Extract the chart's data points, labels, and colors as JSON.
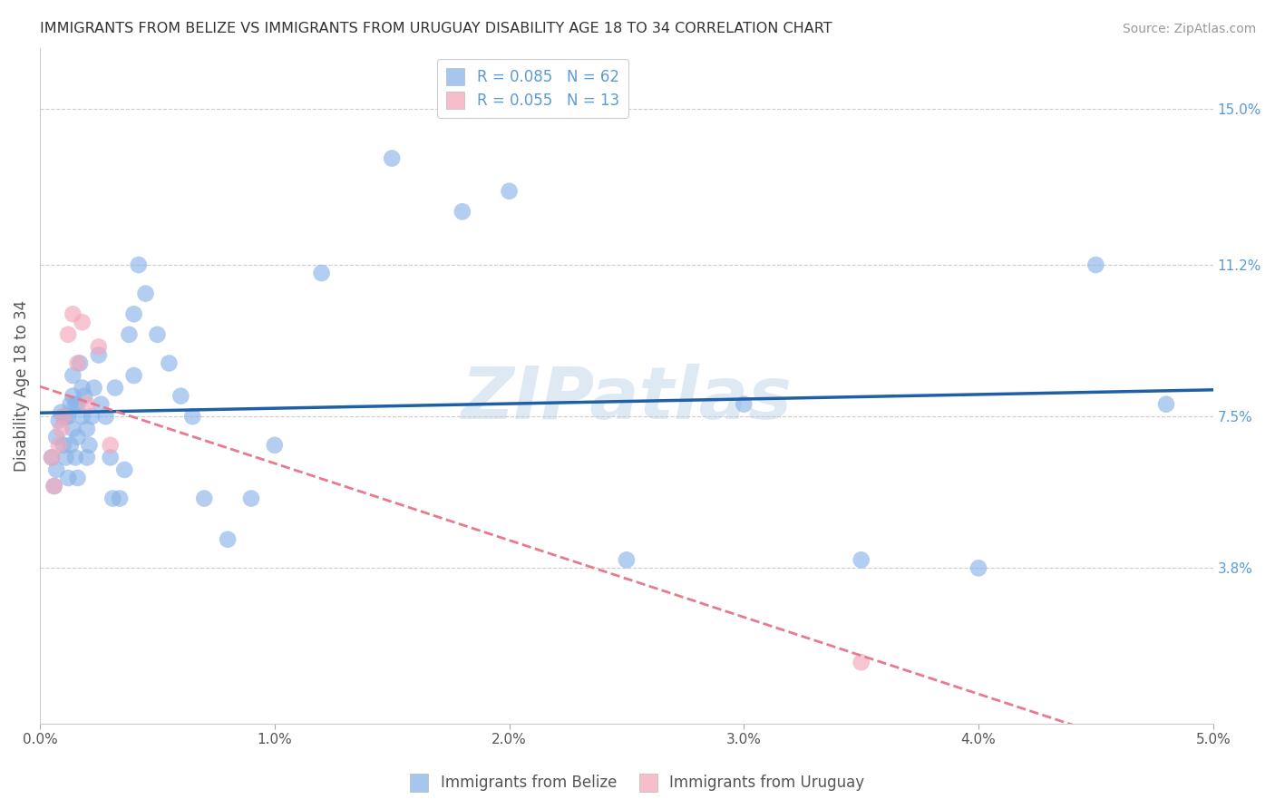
{
  "title": "IMMIGRANTS FROM BELIZE VS IMMIGRANTS FROM URUGUAY DISABILITY AGE 18 TO 34 CORRELATION CHART",
  "source": "Source: ZipAtlas.com",
  "ylabel": "Disability Age 18 to 34",
  "xlim": [
    0.0,
    0.05
  ],
  "ylim": [
    0.0,
    0.165
  ],
  "xtick_labels": [
    "0.0%",
    "1.0%",
    "2.0%",
    "3.0%",
    "4.0%",
    "5.0%"
  ],
  "xtick_vals": [
    0.0,
    0.01,
    0.02,
    0.03,
    0.04,
    0.05
  ],
  "ytick_labels": [
    "3.8%",
    "7.5%",
    "11.2%",
    "15.0%"
  ],
  "ytick_vals": [
    0.038,
    0.075,
    0.112,
    0.15
  ],
  "watermark": "ZIPatlas",
  "belize_color": "#8ab4e8",
  "uruguay_color": "#f4a7b9",
  "belize_line_color": "#1f5fa6",
  "uruguay_line_color": "#e87a8e",
  "belize_x": [
    0.0005,
    0.0006,
    0.0007,
    0.0007,
    0.0008,
    0.0009,
    0.001,
    0.001,
    0.0011,
    0.0011,
    0.0012,
    0.0012,
    0.0013,
    0.0013,
    0.0014,
    0.0014,
    0.0014,
    0.0015,
    0.0015,
    0.0016,
    0.0016,
    0.0016,
    0.0017,
    0.0018,
    0.0018,
    0.0019,
    0.002,
    0.002,
    0.0021,
    0.0022,
    0.0023,
    0.0025,
    0.0026,
    0.0028,
    0.003,
    0.0031,
    0.0032,
    0.0034,
    0.0036,
    0.0038,
    0.004,
    0.004,
    0.0042,
    0.0045,
    0.005,
    0.0055,
    0.006,
    0.0065,
    0.007,
    0.008,
    0.009,
    0.01,
    0.012,
    0.015,
    0.018,
    0.02,
    0.025,
    0.03,
    0.035,
    0.04,
    0.045,
    0.048
  ],
  "belize_y": [
    0.065,
    0.058,
    0.07,
    0.062,
    0.074,
    0.076,
    0.075,
    0.068,
    0.075,
    0.065,
    0.075,
    0.06,
    0.068,
    0.078,
    0.08,
    0.072,
    0.085,
    0.078,
    0.065,
    0.07,
    0.078,
    0.06,
    0.088,
    0.082,
    0.075,
    0.08,
    0.072,
    0.065,
    0.068,
    0.075,
    0.082,
    0.09,
    0.078,
    0.075,
    0.065,
    0.055,
    0.082,
    0.055,
    0.062,
    0.095,
    0.085,
    0.1,
    0.112,
    0.105,
    0.095,
    0.088,
    0.08,
    0.075,
    0.055,
    0.045,
    0.055,
    0.068,
    0.11,
    0.138,
    0.125,
    0.13,
    0.04,
    0.078,
    0.04,
    0.038,
    0.112,
    0.078
  ],
  "uruguay_x": [
    0.0005,
    0.0006,
    0.0008,
    0.0009,
    0.001,
    0.0012,
    0.0014,
    0.0016,
    0.0018,
    0.002,
    0.0025,
    0.003,
    0.035
  ],
  "uruguay_y": [
    0.065,
    0.058,
    0.068,
    0.072,
    0.075,
    0.095,
    0.1,
    0.088,
    0.098,
    0.078,
    0.092,
    0.068,
    0.015
  ]
}
